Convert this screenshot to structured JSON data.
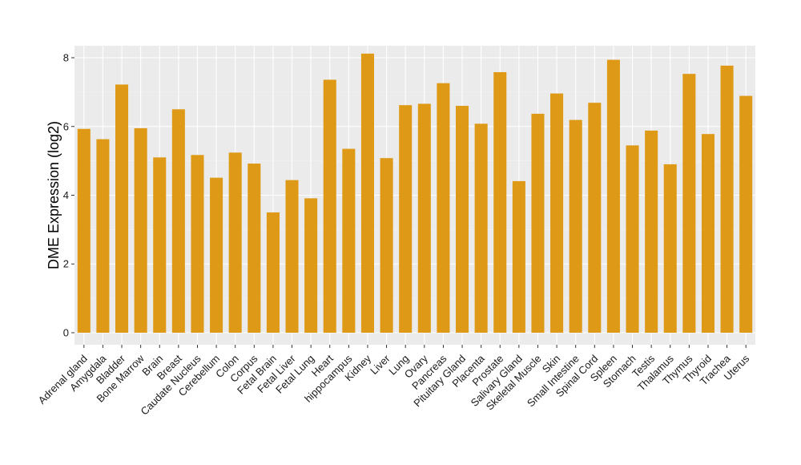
{
  "chart_data": {
    "type": "bar",
    "ylabel": "DME Expression (log2)",
    "xlabel": "",
    "ylim": [
      -0.35,
      8.35
    ],
    "yticks": [
      0,
      2,
      4,
      6,
      8
    ],
    "grid": true,
    "legend": "none",
    "colors": {
      "bar": "#DE9A17",
      "panel": "#EBEBEB",
      "grid_major": "#FFFFFF",
      "grid_minor": "#F5F5F5"
    },
    "categories": [
      "Adrenal gland",
      "Amygdala",
      "Bladder",
      "Bone Marrow",
      "Brain",
      "Breast",
      "Caudate Nucleus",
      "Cerebellum",
      "Colon",
      "Corpus",
      "Fetal Brain",
      "Fetal Liver",
      "Fetal Lung",
      "Heart",
      "hippocampus",
      "Kidney",
      "Liver",
      "Lung",
      "Ovary",
      "Pancreas",
      "Pituitary Gland",
      "Placenta",
      "Prostate",
      "Salivary Gland",
      "Skeletal Muscle",
      "Skin",
      "Small Intestine",
      "Spinal Cord",
      "Spleen",
      "Stomach",
      "Testis",
      "Thalamus",
      "Thymus",
      "Thyroid",
      "Trachea",
      "Uterus"
    ],
    "values": [
      5.93,
      5.63,
      7.22,
      5.95,
      5.1,
      6.5,
      5.17,
      4.51,
      5.24,
      4.92,
      3.5,
      4.44,
      3.91,
      7.36,
      5.35,
      8.12,
      5.08,
      6.62,
      6.66,
      7.26,
      6.6,
      6.08,
      7.58,
      4.41,
      6.37,
      6.96,
      6.19,
      6.69,
      7.94,
      5.45,
      5.88,
      4.9,
      7.53,
      5.78,
      7.77,
      6.89
    ]
  }
}
